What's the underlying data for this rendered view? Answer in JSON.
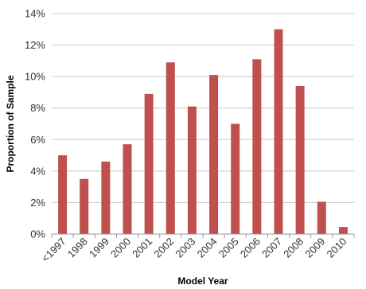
{
  "chart_data": {
    "type": "bar",
    "title": "",
    "xlabel": "Model Year",
    "ylabel": "Proportion of Sample",
    "categories": [
      "<1997",
      "1998",
      "1999",
      "2000",
      "2001",
      "2002",
      "2003",
      "2004",
      "2005",
      "2006",
      "2007",
      "2008",
      "2009",
      "2010"
    ],
    "values": [
      5.0,
      3.5,
      4.6,
      5.7,
      8.9,
      10.9,
      8.1,
      10.1,
      7.0,
      11.1,
      13.0,
      9.4,
      2.05,
      0.45
    ],
    "unit": "%",
    "ylim": [
      0,
      14
    ],
    "yticks": [
      0,
      2,
      4,
      6,
      8,
      10,
      12,
      14
    ],
    "ytick_labels": [
      "0%",
      "2%",
      "4%",
      "6%",
      "8%",
      "10%",
      "12%",
      "14%"
    ],
    "grid": true,
    "legend": "none",
    "bar_color": "#c0504d"
  }
}
